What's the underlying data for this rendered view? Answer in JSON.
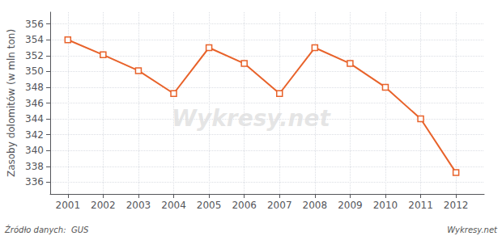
{
  "chart_data": {
    "type": "line",
    "x": [
      2001,
      2002,
      2003,
      2004,
      2005,
      2006,
      2007,
      2008,
      2009,
      2010,
      2011,
      2012
    ],
    "values": [
      354.0,
      352.1,
      350.1,
      347.2,
      353.0,
      351.0,
      347.2,
      353.0,
      351.0,
      348.0,
      344.0,
      337.2
    ],
    "color": "#e8622a",
    "marker": "square",
    "ylabel": "Zasoby dolomitów (w mln ton)",
    "xlim": [
      2000.5,
      2012.8
    ],
    "xticks": [
      2001,
      2002,
      2003,
      2004,
      2005,
      2006,
      2007,
      2008,
      2009,
      2010,
      2011,
      2012
    ],
    "ylim": [
      334.5,
      357.5
    ],
    "yticks": [
      336,
      338,
      340,
      342,
      344,
      346,
      348,
      350,
      352,
      354,
      356
    ],
    "grid": true,
    "watermark": "Wykresy.net",
    "source": "Źródło danych:  GUS"
  }
}
